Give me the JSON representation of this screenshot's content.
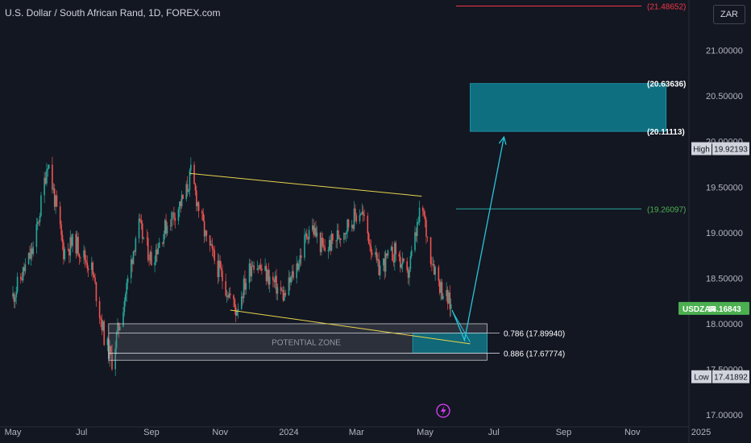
{
  "title": "U.S. Dollar / South African Rand, 1D, FOREX.com",
  "currency_button": "ZAR",
  "colors": {
    "background": "#131722",
    "up_candle": "#26a69a",
    "down_candle": "#ef5350",
    "trendline": "#e8d44d",
    "zone_fill": "#0e6f80",
    "arrow": "#26c6da",
    "price_badge": "#4caf50",
    "top_level": "#f23645",
    "mid_level": "#26a69a"
  },
  "chart_data": {
    "type": "candlestick",
    "symbol": "USDZAR",
    "y_axis": {
      "range": [
        16.78,
        21.5
      ],
      "ticks": [
        "21.00000",
        "20.50000",
        "20.00000",
        "19.50000",
        "19.00000",
        "18.50000",
        "18.00000",
        "17.50000",
        "17.00000"
      ],
      "tick_values": [
        21.0,
        20.5,
        20.0,
        19.5,
        19.0,
        18.5,
        18.0,
        17.5,
        17.0
      ]
    },
    "x_axis": {
      "range": [
        "2023-05-01",
        "2025-01-01"
      ],
      "ticks": [
        {
          "label": "May",
          "date": "2023-05-01"
        },
        {
          "label": "Jul",
          "date": "2023-07-01"
        },
        {
          "label": "Sep",
          "date": "2023-09-01"
        },
        {
          "label": "Nov",
          "date": "2023-11-01"
        },
        {
          "label": "2024",
          "date": "2024-01-01"
        },
        {
          "label": "Mar",
          "date": "2024-03-01"
        },
        {
          "label": "May",
          "date": "2024-05-01"
        },
        {
          "label": "Jul",
          "date": "2024-07-01"
        },
        {
          "label": "Sep",
          "date": "2024-09-01"
        },
        {
          "label": "Nov",
          "date": "2024-11-01"
        },
        {
          "label": "2025",
          "date": "2025-01-01"
        }
      ]
    },
    "price_path": [
      {
        "date": "2023-05-01",
        "close": 18.3
      },
      {
        "date": "2023-05-20",
        "close": 18.85
      },
      {
        "date": "2023-06-01",
        "close": 19.8
      },
      {
        "date": "2023-06-15",
        "close": 18.8
      },
      {
        "date": "2023-06-25",
        "close": 18.9
      },
      {
        "date": "2023-07-10",
        "close": 18.6
      },
      {
        "date": "2023-07-22",
        "close": 17.8
      },
      {
        "date": "2023-07-28",
        "close": 17.6
      },
      {
        "date": "2023-08-10",
        "close": 18.4
      },
      {
        "date": "2023-08-20",
        "close": 19.1
      },
      {
        "date": "2023-09-01",
        "close": 18.7
      },
      {
        "date": "2023-09-15",
        "close": 19.1
      },
      {
        "date": "2023-10-01",
        "close": 19.4
      },
      {
        "date": "2023-10-06",
        "close": 19.65
      },
      {
        "date": "2023-10-20",
        "close": 18.9
      },
      {
        "date": "2023-11-03",
        "close": 18.5
      },
      {
        "date": "2023-11-15",
        "close": 18.15
      },
      {
        "date": "2023-11-30",
        "close": 18.7
      },
      {
        "date": "2023-12-15",
        "close": 18.5
      },
      {
        "date": "2023-12-28",
        "close": 18.3
      },
      {
        "date": "2024-01-10",
        "close": 18.7
      },
      {
        "date": "2024-01-20",
        "close": 19.1
      },
      {
        "date": "2024-02-01",
        "close": 18.8
      },
      {
        "date": "2024-02-20",
        "close": 19.05
      },
      {
        "date": "2024-03-05",
        "close": 19.25
      },
      {
        "date": "2024-03-20",
        "close": 18.6
      },
      {
        "date": "2024-04-05",
        "close": 18.8
      },
      {
        "date": "2024-04-15",
        "close": 18.5
      },
      {
        "date": "2024-04-28",
        "close": 19.3
      },
      {
        "date": "2024-05-05",
        "close": 18.8
      },
      {
        "date": "2024-05-15",
        "close": 18.4
      },
      {
        "date": "2024-05-25",
        "close": 18.17
      }
    ],
    "last_price": {
      "symbol": "USDZAR",
      "label": "18.16843",
      "value": 18.16843
    },
    "high_marker": {
      "label": "High",
      "value_label": "19.92193",
      "value": 19.92193
    },
    "low_marker": {
      "label": "Low",
      "value_label": "17.41892",
      "value": 17.41892
    },
    "levels": [
      {
        "label": "(21.48652)",
        "value": 21.48652
      },
      {
        "label": "(20.63636)",
        "value": 20.63636
      },
      {
        "label": "(20.11113)",
        "value": 20.11113
      },
      {
        "label": "(19.26097)",
        "value": 19.26097
      }
    ],
    "fib_levels": [
      {
        "label": "0.786 (17.89940)",
        "value": 17.8994
      },
      {
        "label": "0.886 (17.67774)",
        "value": 17.67774
      }
    ],
    "potential_zone": {
      "label": "POTENTIAL ZONE",
      "from": "2023-07-25",
      "to": "2024-06-25",
      "top": 18.0,
      "bottom": 17.6
    },
    "buy_zone": {
      "from": "2024-04-20",
      "to": "2024-06-25",
      "top": 17.8994,
      "bottom": 17.67774
    },
    "target_box": {
      "from": "2024-06-10",
      "to": "2024-12-01",
      "top": 20.63636,
      "bottom": 20.11113
    },
    "trendlines": [
      {
        "from": {
          "date": "2023-10-05",
          "value": 19.65
        },
        "to": {
          "date": "2024-04-28",
          "value": 19.4
        }
      },
      {
        "from": {
          "date": "2023-11-10",
          "value": 18.15
        },
        "to": {
          "date": "2024-06-10",
          "value": 17.78
        }
      }
    ],
    "projection": [
      {
        "date": "2024-05-25",
        "value": 18.15
      },
      {
        "date": "2024-06-05",
        "value": 17.82
      },
      {
        "date": "2024-07-10",
        "value": 20.05
      }
    ]
  }
}
